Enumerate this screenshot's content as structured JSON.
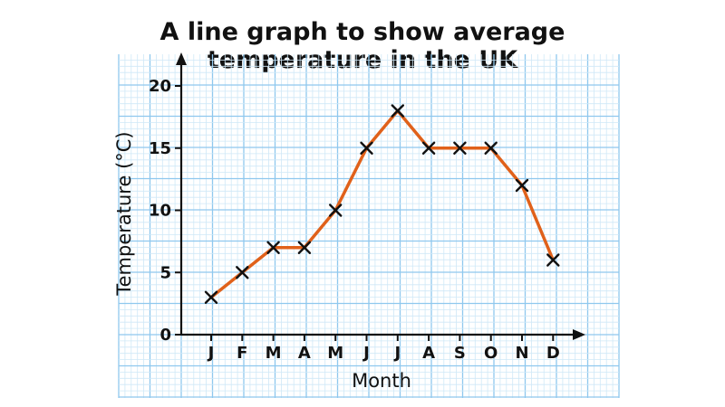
{
  "chart_data": {
    "type": "line",
    "title": "A line graph to show average temperature in the UK",
    "title_lines": [
      "A line graph to show average",
      "temperature in the UK"
    ],
    "xlabel": "Month",
    "ylabel": "Temperature (°C)",
    "categories": [
      "J",
      "F",
      "M",
      "A",
      "M",
      "J",
      "J",
      "A",
      "S",
      "O",
      "N",
      "D"
    ],
    "values": [
      3,
      5,
      7,
      7,
      10,
      15,
      18,
      15,
      15,
      15,
      12,
      6
    ],
    "ylim": [
      0,
      20
    ],
    "y_ticks": [
      "0",
      "5",
      "10",
      "15",
      "20"
    ],
    "grid": true,
    "marker": "x",
    "colors": {
      "line": "#e0611a",
      "grid_minor": "#cfe8f7",
      "grid_major": "#8fc8ee",
      "axis": "#111111",
      "marker": "#111111"
    }
  }
}
